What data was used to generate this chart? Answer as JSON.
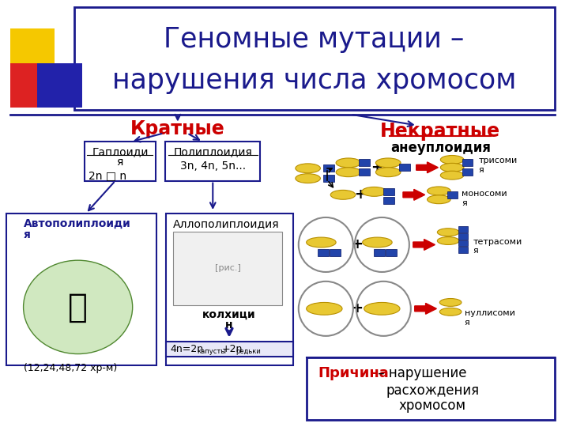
{
  "title_line1": "Геномные мутации –",
  "title_line2": "нарушения числа хромосом",
  "title_color": "#1a1a8c",
  "bg_color": "#ffffff",
  "kratkie_text": "Кратные",
  "nekratnie_text": "Некратные",
  "aneuploidy_text": "анеуплоидия",
  "gaploidia_formula": "2n □ n",
  "trisomy_text": "трисоми\nя",
  "monosomy_text": "моносоми\nя",
  "tetrasomy_text": "тетрасоми\nя",
  "nullisomy_text": "нуллисоми\nя",
  "prichina_text": "Причина",
  "prichina_rest": " – нарушение\nрасхождения\nхромосом",
  "kolhicin_text": "колхици\nн",
  "formula_text": "4n=2n",
  "formula_sub1": "капусты",
  "formula_plus": "+2n",
  "formula_sub2": "редьки",
  "bottom_text": "(12,24,48,72 хр-м)",
  "red_color": "#cc0000",
  "blue_dark": "#1a1a8c",
  "yellow_chrom": "#e8c832",
  "blue_chrom": "#2244aa",
  "yellow_sq": "#f5c800",
  "red_sq": "#dd2222",
  "blue_sq": "#2222aa"
}
